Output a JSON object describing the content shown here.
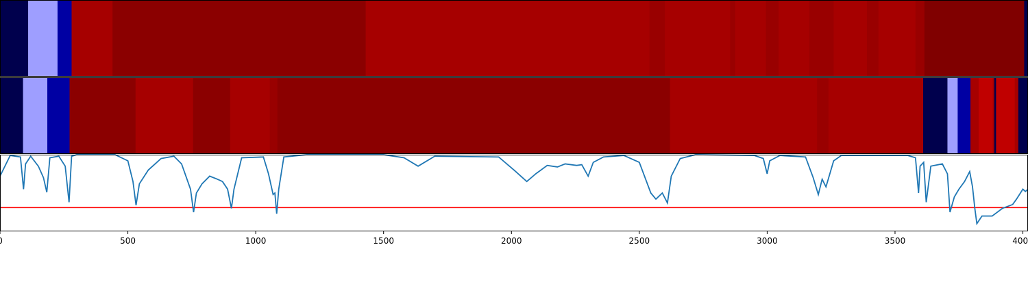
{
  "chart_data": [
    {
      "type": "heatmap",
      "panel": "top-strip",
      "xlim": [
        0,
        4020
      ],
      "segments": [
        {
          "start": 0,
          "end": 110,
          "color": "#00004d"
        },
        {
          "start": 110,
          "end": 225,
          "color": "#9e9eff"
        },
        {
          "start": 225,
          "end": 280,
          "color": "#0000a3"
        },
        {
          "start": 280,
          "end": 440,
          "color": "#a60000"
        },
        {
          "start": 440,
          "end": 1430,
          "color": "#8b0000"
        },
        {
          "start": 1430,
          "end": 2540,
          "color": "#a60000"
        },
        {
          "start": 2540,
          "end": 2600,
          "color": "#990000"
        },
        {
          "start": 2600,
          "end": 2855,
          "color": "#a60000"
        },
        {
          "start": 2855,
          "end": 2875,
          "color": "#990000"
        },
        {
          "start": 2875,
          "end": 2995,
          "color": "#a60000"
        },
        {
          "start": 2995,
          "end": 3045,
          "color": "#990000"
        },
        {
          "start": 3045,
          "end": 3165,
          "color": "#a60000"
        },
        {
          "start": 3165,
          "end": 3260,
          "color": "#990000"
        },
        {
          "start": 3260,
          "end": 3390,
          "color": "#a60000"
        },
        {
          "start": 3390,
          "end": 3435,
          "color": "#990000"
        },
        {
          "start": 3435,
          "end": 3580,
          "color": "#a60000"
        },
        {
          "start": 3580,
          "end": 3615,
          "color": "#990000"
        },
        {
          "start": 3615,
          "end": 4005,
          "color": "#800000"
        },
        {
          "start": 4005,
          "end": 4020,
          "color": "#00004d"
        }
      ]
    },
    {
      "type": "heatmap",
      "panel": "middle-strip",
      "xlim": [
        0,
        4020
      ],
      "segments": [
        {
          "start": 0,
          "end": 90,
          "color": "#00004d"
        },
        {
          "start": 90,
          "end": 185,
          "color": "#9e9eff"
        },
        {
          "start": 185,
          "end": 272,
          "color": "#0000a3"
        },
        {
          "start": 272,
          "end": 530,
          "color": "#8b0000"
        },
        {
          "start": 530,
          "end": 755,
          "color": "#a60000"
        },
        {
          "start": 755,
          "end": 900,
          "color": "#8b0000"
        },
        {
          "start": 900,
          "end": 1055,
          "color": "#a60000"
        },
        {
          "start": 1055,
          "end": 1085,
          "color": "#990000"
        },
        {
          "start": 1085,
          "end": 2620,
          "color": "#8b0000"
        },
        {
          "start": 2620,
          "end": 3195,
          "color": "#a60000"
        },
        {
          "start": 3195,
          "end": 3240,
          "color": "#990000"
        },
        {
          "start": 3240,
          "end": 3610,
          "color": "#a60000"
        },
        {
          "start": 3610,
          "end": 3705,
          "color": "#00004d"
        },
        {
          "start": 3705,
          "end": 3745,
          "color": "#9e9eff"
        },
        {
          "start": 3745,
          "end": 3795,
          "color": "#0000a3"
        },
        {
          "start": 3795,
          "end": 3827,
          "color": "#a60000"
        },
        {
          "start": 3827,
          "end": 3882,
          "color": "#c00000"
        },
        {
          "start": 3882,
          "end": 3888,
          "color": "#a60000"
        },
        {
          "start": 3888,
          "end": 3895,
          "color": "#00004d"
        },
        {
          "start": 3895,
          "end": 3968,
          "color": "#c00000"
        },
        {
          "start": 3968,
          "end": 3982,
          "color": "#a60000"
        },
        {
          "start": 3982,
          "end": 4020,
          "color": "#00004d"
        }
      ]
    },
    {
      "type": "line",
      "panel": "signal",
      "xlim": [
        0,
        4020
      ],
      "ylim": [
        0,
        1
      ],
      "x_ticks": [
        0,
        500,
        1000,
        1500,
        2000,
        2500,
        3000,
        3500,
        4000
      ],
      "tick_labels": [
        "0",
        "500",
        "1000",
        "1500",
        "2000",
        "2500",
        "3000",
        "3500",
        "4000"
      ],
      "series": [
        {
          "color": "#1f77b4",
          "points": [
            [
              0,
              0.72
            ],
            [
              40,
              0.99
            ],
            [
              80,
              0.97
            ],
            [
              92,
              0.55
            ],
            [
              100,
              0.88
            ],
            [
              120,
              0.98
            ],
            [
              150,
              0.85
            ],
            [
              170,
              0.7
            ],
            [
              183,
              0.51
            ],
            [
              195,
              0.96
            ],
            [
              230,
              0.98
            ],
            [
              255,
              0.85
            ],
            [
              270,
              0.38
            ],
            [
              280,
              0.98
            ],
            [
              300,
              1.0
            ],
            [
              450,
              1.0
            ],
            [
              500,
              0.92
            ],
            [
              520,
              0.65
            ],
            [
              532,
              0.34
            ],
            [
              545,
              0.62
            ],
            [
              580,
              0.8
            ],
            [
              630,
              0.95
            ],
            [
              680,
              0.98
            ],
            [
              710,
              0.88
            ],
            [
              745,
              0.55
            ],
            [
              757,
              0.25
            ],
            [
              768,
              0.5
            ],
            [
              790,
              0.62
            ],
            [
              820,
              0.72
            ],
            [
              850,
              0.68
            ],
            [
              870,
              0.65
            ],
            [
              890,
              0.55
            ],
            [
              905,
              0.3
            ],
            [
              915,
              0.55
            ],
            [
              945,
              0.96
            ],
            [
              1030,
              0.97
            ],
            [
              1050,
              0.75
            ],
            [
              1068,
              0.48
            ],
            [
              1075,
              0.5
            ],
            [
              1082,
              0.23
            ],
            [
              1090,
              0.55
            ],
            [
              1110,
              0.97
            ],
            [
              1200,
              1.0
            ],
            [
              1500,
              1.0
            ],
            [
              1580,
              0.96
            ],
            [
              1635,
              0.85
            ],
            [
              1650,
              0.88
            ],
            [
              1700,
              0.98
            ],
            [
              1950,
              0.97
            ],
            [
              2010,
              0.8
            ],
            [
              2060,
              0.65
            ],
            [
              2095,
              0.75
            ],
            [
              2140,
              0.86
            ],
            [
              2180,
              0.84
            ],
            [
              2210,
              0.88
            ],
            [
              2255,
              0.86
            ],
            [
              2275,
              0.87
            ],
            [
              2300,
              0.72
            ],
            [
              2320,
              0.9
            ],
            [
              2360,
              0.97
            ],
            [
              2440,
              0.99
            ],
            [
              2500,
              0.9
            ],
            [
              2545,
              0.5
            ],
            [
              2565,
              0.42
            ],
            [
              2590,
              0.5
            ],
            [
              2610,
              0.37
            ],
            [
              2625,
              0.72
            ],
            [
              2660,
              0.95
            ],
            [
              2720,
              1.0
            ],
            [
              2950,
              0.99
            ],
            [
              2985,
              0.95
            ],
            [
              3000,
              0.75
            ],
            [
              3010,
              0.92
            ],
            [
              3050,
              0.99
            ],
            [
              3150,
              0.97
            ],
            [
              3180,
              0.7
            ],
            [
              3200,
              0.48
            ],
            [
              3215,
              0.68
            ],
            [
              3230,
              0.58
            ],
            [
              3260,
              0.92
            ],
            [
              3290,
              0.99
            ],
            [
              3550,
              0.99
            ],
            [
              3580,
              0.96
            ],
            [
              3592,
              0.5
            ],
            [
              3598,
              0.85
            ],
            [
              3612,
              0.9
            ],
            [
              3622,
              0.38
            ],
            [
              3640,
              0.85
            ],
            [
              3685,
              0.88
            ],
            [
              3705,
              0.75
            ],
            [
              3715,
              0.25
            ],
            [
              3732,
              0.45
            ],
            [
              3750,
              0.55
            ],
            [
              3772,
              0.65
            ],
            [
              3792,
              0.78
            ],
            [
              3803,
              0.58
            ],
            [
              3812,
              0.3
            ],
            [
              3820,
              0.1
            ],
            [
              3840,
              0.2
            ],
            [
              3880,
              0.2
            ],
            [
              3920,
              0.3
            ],
            [
              3960,
              0.35
            ],
            [
              3975,
              0.42
            ],
            [
              4000,
              0.55
            ],
            [
              4010,
              0.52
            ],
            [
              4020,
              0.55
            ]
          ]
        }
      ],
      "threshold": {
        "value": 0.31,
        "color": "#ff0000"
      }
    }
  ]
}
